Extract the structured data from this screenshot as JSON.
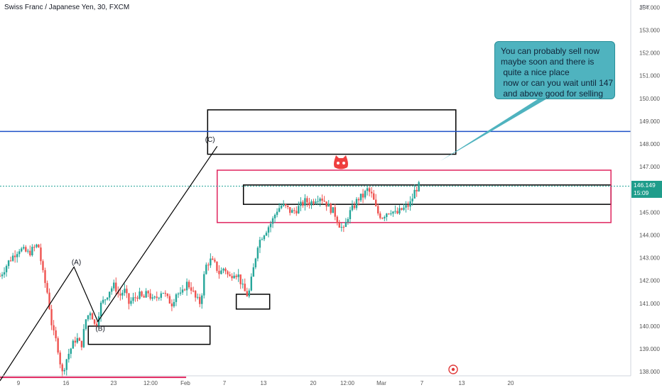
{
  "header": {
    "title": "Swiss Franc / Japanese Yen, 30, FXCM"
  },
  "currency_label": "JPY",
  "price_tag": {
    "price": "146.149",
    "countdown": "15:09"
  },
  "callout_text": "You can probably sell now\nmaybe soon and there is\n quite a nice place\n now or can you wait until 147\n and above good for selling",
  "colors": {
    "up": "#26a69a",
    "down": "#ef5350",
    "blue_line": "#1e50c8",
    "pink_zone": "#e0245e",
    "box": "#000000",
    "callout": "#4fb3bf"
  },
  "icons": [
    "cat-face-icon",
    "target-dot-icon"
  ],
  "chart_data": {
    "type": "candlestick",
    "y_ticks": [
      "154.000",
      "153.000",
      "152.000",
      "151.000",
      "150.000",
      "149.000",
      "148.000",
      "147.000",
      "145.000",
      "144.000",
      "143.000",
      "142.000",
      "141.000",
      "140.000",
      "139.000",
      "138.000"
    ],
    "x_ticks": [
      "9",
      "16",
      "23",
      "12:00",
      "Feb",
      "7",
      "13",
      "20",
      "12:00",
      "Mar",
      "7",
      "13",
      "20"
    ],
    "ylim": [
      137.6,
      154.2
    ],
    "horizontal_line": 148.55,
    "current_price": 146.149,
    "wave_labels": [
      {
        "label": "(A)",
        "x": 1.6,
        "price": 142.7
      },
      {
        "label": "(B)",
        "x": 2.1,
        "price": 139.8
      },
      {
        "label": "(C)",
        "x": 4.4,
        "price": 148.1
      }
    ],
    "wave_path": [
      {
        "x": 0.0,
        "price": 137.6
      },
      {
        "x": 1.55,
        "price": 142.6
      },
      {
        "x": 2.05,
        "price": 140.2
      },
      {
        "x": 4.55,
        "price": 147.9
      }
    ],
    "zones": [
      {
        "kind": "box",
        "x0": 4.35,
        "x1": 9.55,
        "p_top": 149.5,
        "p_bottom": 147.55
      },
      {
        "kind": "box",
        "x0": 5.1,
        "x1": 12.8,
        "p_top": 146.2,
        "p_bottom": 145.35
      },
      {
        "kind": "box",
        "x0": 4.95,
        "x1": 5.65,
        "p_top": 141.4,
        "p_bottom": 140.75
      },
      {
        "kind": "box",
        "x0": 1.85,
        "x1": 4.4,
        "p_top": 140.0,
        "p_bottom": 139.2
      },
      {
        "kind": "pink",
        "x0": 4.55,
        "x1": 12.8,
        "p_top": 146.85,
        "p_bottom": 144.55
      },
      {
        "kind": "pinkline",
        "x0": 0.0,
        "x1": 3.9,
        "price": 137.75
      }
    ],
    "price_path": [
      [
        0.0,
        142.2
      ],
      [
        0.2,
        142.9
      ],
      [
        0.4,
        143.4
      ],
      [
        0.6,
        143.2
      ],
      [
        0.8,
        143.6
      ],
      [
        0.9,
        142.3
      ],
      [
        1.0,
        141.4
      ],
      [
        1.1,
        139.8
      ],
      [
        1.2,
        139.2
      ],
      [
        1.3,
        137.9
      ],
      [
        1.4,
        138.6
      ],
      [
        1.5,
        139.1
      ],
      [
        1.6,
        139.5
      ],
      [
        1.7,
        139.1
      ],
      [
        1.8,
        140.3
      ],
      [
        1.9,
        140.7
      ],
      [
        2.0,
        139.9
      ],
      [
        2.1,
        140.9
      ],
      [
        2.2,
        141.2
      ],
      [
        2.3,
        141.6
      ],
      [
        2.4,
        141.8
      ],
      [
        2.5,
        141.3
      ],
      [
        2.6,
        141.6
      ],
      [
        2.7,
        141.0
      ],
      [
        2.8,
        141.2
      ],
      [
        2.9,
        141.4
      ],
      [
        3.0,
        141.2
      ],
      [
        3.1,
        141.5
      ],
      [
        3.2,
        141.1
      ],
      [
        3.3,
        141.3
      ],
      [
        3.4,
        141.6
      ],
      [
        3.5,
        141.2
      ],
      [
        3.6,
        141.0
      ],
      [
        3.7,
        141.5
      ],
      [
        3.8,
        141.3
      ],
      [
        3.9,
        141.9
      ],
      [
        4.0,
        141.7
      ],
      [
        4.1,
        141.2
      ],
      [
        4.2,
        141.0
      ],
      [
        4.3,
        142.6
      ],
      [
        4.4,
        142.9
      ],
      [
        4.5,
        142.7
      ],
      [
        4.6,
        142.3
      ],
      [
        4.7,
        142.6
      ],
      [
        4.8,
        142.1
      ],
      [
        4.9,
        142.4
      ],
      [
        5.0,
        142.2
      ],
      [
        5.1,
        141.6
      ],
      [
        5.2,
        141.3
      ],
      [
        5.3,
        142.4
      ],
      [
        5.4,
        143.6
      ],
      [
        5.5,
        144.0
      ],
      [
        5.6,
        144.3
      ],
      [
        5.7,
        144.6
      ],
      [
        5.8,
        145.1
      ],
      [
        5.9,
        145.3
      ],
      [
        6.0,
        145.2
      ],
      [
        6.1,
        145.0
      ],
      [
        6.2,
        145.1
      ],
      [
        6.3,
        145.3
      ],
      [
        6.4,
        145.5
      ],
      [
        6.5,
        145.4
      ],
      [
        6.6,
        145.6
      ],
      [
        6.7,
        145.7
      ],
      [
        6.8,
        145.5
      ],
      [
        6.9,
        145.2
      ],
      [
        7.0,
        145.0
      ],
      [
        7.1,
        144.5
      ],
      [
        7.2,
        144.2
      ],
      [
        7.3,
        144.9
      ],
      [
        7.4,
        145.2
      ],
      [
        7.5,
        145.6
      ],
      [
        7.6,
        145.7
      ],
      [
        7.7,
        146.0
      ],
      [
        7.8,
        145.7
      ],
      [
        7.9,
        145.0
      ],
      [
        8.0,
        144.8
      ],
      [
        8.1,
        145.0
      ],
      [
        8.2,
        145.1
      ],
      [
        8.3,
        144.9
      ],
      [
        8.4,
        145.1
      ],
      [
        8.5,
        145.2
      ],
      [
        8.6,
        145.4
      ],
      [
        8.7,
        146.0
      ],
      [
        8.8,
        146.2
      ]
    ]
  }
}
